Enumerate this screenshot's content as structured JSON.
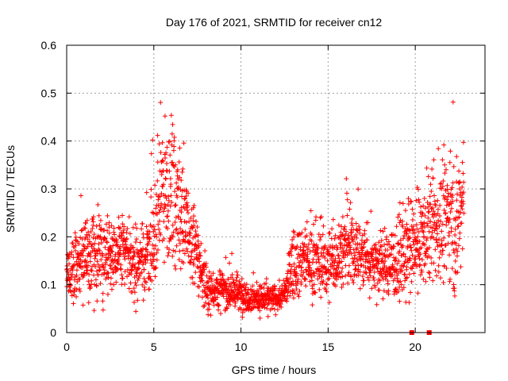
{
  "chart_data": {
    "type": "scatter",
    "title": "Day 176 of 2021, SRMTID for receiver cn12",
    "xlabel": "GPS time / hours",
    "ylabel": "SRMTID / TECUs",
    "xlim": [
      0,
      24
    ],
    "ylim": [
      0,
      0.6
    ],
    "x_ticks": [
      0,
      5,
      10,
      15,
      20
    ],
    "x_tick_labels": [
      "0",
      "5",
      "10",
      "15",
      "20"
    ],
    "y_ticks": [
      0,
      0.1,
      0.2,
      0.3,
      0.4,
      0.5,
      0.6
    ],
    "y_tick_labels": [
      "0",
      "0.1",
      "0.2",
      "0.3",
      "0.4",
      "0.5",
      "0.6"
    ],
    "grid": true,
    "marker": "+",
    "series_color": "#ff0000",
    "zero_markers_x": [
      19.8,
      20.8
    ],
    "series": [
      {
        "name": "SRMTID",
        "profile_hours": [
          0,
          0.5,
          1,
          1.5,
          2,
          2.5,
          3,
          3.5,
          4,
          4.5,
          5,
          5.2,
          5.5,
          5.8,
          6.2,
          6.6,
          7,
          7.5,
          8,
          9,
          10,
          11,
          12,
          12.5,
          13,
          14,
          15,
          16,
          17,
          18,
          19,
          19.8,
          20.5,
          21,
          21.5,
          22,
          22.3,
          22.8
        ],
        "profile_center": [
          0.12,
          0.13,
          0.16,
          0.16,
          0.15,
          0.17,
          0.17,
          0.16,
          0.14,
          0.16,
          0.17,
          0.26,
          0.3,
          0.3,
          0.28,
          0.25,
          0.2,
          0.16,
          0.09,
          0.09,
          0.08,
          0.07,
          0.07,
          0.08,
          0.15,
          0.15,
          0.14,
          0.18,
          0.16,
          0.14,
          0.15,
          0.17,
          0.2,
          0.22,
          0.22,
          0.26,
          0.2,
          0.3
        ],
        "profile_spread": [
          0.03,
          0.05,
          0.06,
          0.06,
          0.06,
          0.06,
          0.06,
          0.06,
          0.05,
          0.06,
          0.08,
          0.1,
          0.11,
          0.11,
          0.1,
          0.09,
          0.07,
          0.06,
          0.03,
          0.03,
          0.025,
          0.02,
          0.02,
          0.02,
          0.05,
          0.05,
          0.05,
          0.06,
          0.05,
          0.05,
          0.06,
          0.07,
          0.07,
          0.08,
          0.08,
          0.1,
          0.08,
          0.1
        ]
      }
    ]
  }
}
